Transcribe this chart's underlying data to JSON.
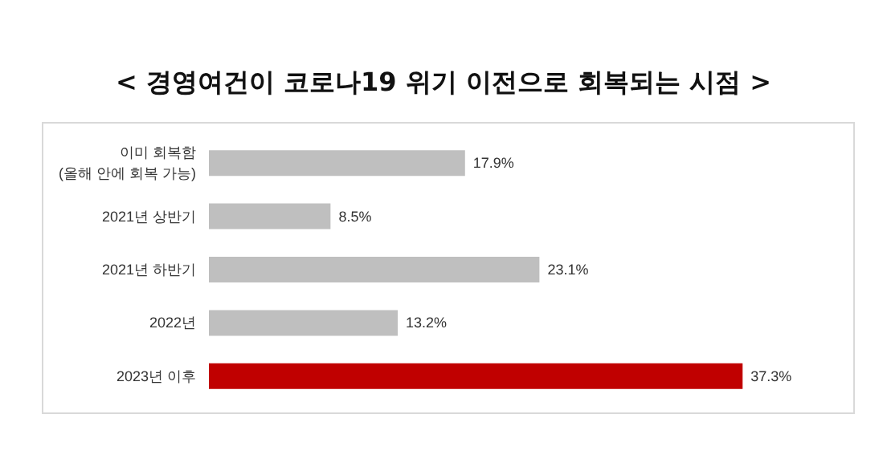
{
  "chart_data": {
    "type": "bar",
    "orientation": "horizontal",
    "title": "< 경영여건이 코로나19 위기 이전으로 회복되는 시점 >",
    "categories": [
      "이미 회복함\n(올해 안에 회복 가능)",
      "2021년 상반기",
      "2021년 하반기",
      "2022년",
      "2023년 이후"
    ],
    "values": [
      17.9,
      8.5,
      23.1,
      13.2,
      37.3
    ],
    "colors": [
      "#bfbfbf",
      "#bfbfbf",
      "#bfbfbf",
      "#bfbfbf",
      "#c00000"
    ],
    "value_labels": [
      "17.9%",
      "8.5%",
      "23.1%",
      "13.2%",
      "37.3%"
    ]
  }
}
